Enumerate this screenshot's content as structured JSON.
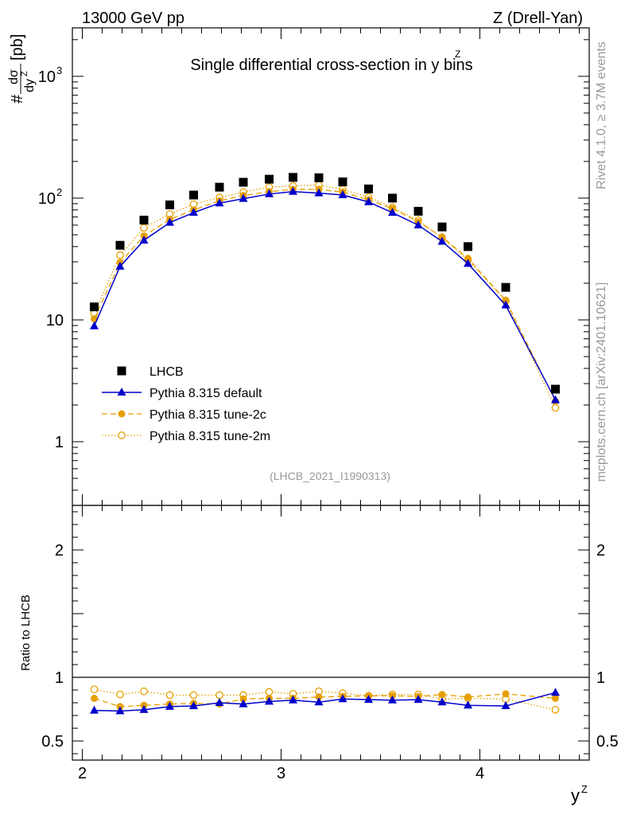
{
  "header": {
    "energy_label": "13000 GeV pp",
    "process_label": "Z (Drell-Yan)"
  },
  "side_labels": {
    "rivet_info": "Rivet 4.1.0, ≥ 3.7M events",
    "source_info": "mcplots.cern.ch [arXiv:2401.10621]"
  },
  "chart_data": {
    "type": "line",
    "title": "Single differential cross-section in y bins",
    "title_sup": "Z",
    "analysis_id": "(LHCB_2021_I1990313)",
    "xlabel": "y",
    "xlabel_sup": "Z",
    "xlim": [
      1.95,
      4.55
    ],
    "x_ticks": [
      {
        "value": 2,
        "label": "2"
      },
      {
        "value": 3,
        "label": "3"
      },
      {
        "value": 4,
        "label": "4"
      }
    ],
    "main": {
      "ylabel": "dσ/dy^Z [pb]",
      "ylabel_prefix": "#",
      "ylabel_num": "dσ",
      "ylabel_den": "dy",
      "ylabel_den_sup": "Z",
      "ylabel_unit": "[pb]",
      "yscale": "log",
      "ylim": [
        0.3,
        2500
      ],
      "y_ticks": [
        {
          "value": 1,
          "label": "1"
        },
        {
          "value": 10,
          "label": "10"
        },
        {
          "value": 100,
          "label": "10",
          "sup": "2"
        },
        {
          "value": 1000,
          "label": "10",
          "sup": "3"
        }
      ]
    },
    "ratio": {
      "ylabel": "Ratio to LHCB",
      "ylim": [
        0.35,
        2.35
      ],
      "y_ticks": [
        {
          "value": 0.5,
          "label": "0.5"
        },
        {
          "value": 1,
          "label": "1"
        },
        {
          "value": 2,
          "label": "2"
        }
      ],
      "reference": 1
    },
    "x": [
      2.06,
      2.19,
      2.31,
      2.44,
      2.56,
      2.69,
      2.81,
      2.94,
      3.06,
      3.19,
      3.31,
      3.44,
      3.56,
      3.69,
      3.81,
      3.94,
      4.13,
      4.38
    ],
    "series": [
      {
        "name": "LHCB",
        "style": "data",
        "color": "#000000",
        "values": [
          12.8,
          41,
          66,
          88,
          106,
          123,
          135,
          143,
          148,
          147,
          136,
          119,
          100,
          78,
          58,
          40,
          18.5,
          2.7
        ]
      },
      {
        "name": "Pythia 8.315 default",
        "style": "solid-triangle",
        "color": "#0000cc",
        "values": [
          8.9,
          27.5,
          45,
          63,
          76,
          91,
          99,
          108,
          113,
          110,
          106,
          93,
          76,
          60,
          44,
          29,
          13.2,
          2.2
        ],
        "ratio": [
          0.74,
          0.735,
          0.745,
          0.77,
          0.775,
          0.8,
          0.79,
          0.81,
          0.82,
          0.805,
          0.83,
          0.825,
          0.82,
          0.825,
          0.805,
          0.78,
          0.775,
          0.88
        ]
      },
      {
        "name": "Pythia 8.315 tune-2c",
        "style": "dashed-filled-circle",
        "color": "#e69f00",
        "values": [
          10.2,
          29.5,
          49,
          67,
          80,
          95,
          105,
          113,
          118,
          118,
          112,
          97,
          82,
          64,
          48,
          32,
          14.5,
          2.15
        ],
        "ratio": [
          0.835,
          0.77,
          0.78,
          0.79,
          0.795,
          0.79,
          0.83,
          0.835,
          0.835,
          0.845,
          0.85,
          0.855,
          0.855,
          0.85,
          0.865,
          0.845,
          0.87,
          0.835
        ]
      },
      {
        "name": "Pythia 8.315 tune-2m",
        "style": "dotted-open-circle",
        "color": "#e69f00",
        "values": [
          11.3,
          34,
          57,
          74,
          89,
          101,
          112,
          123,
          126,
          128,
          118,
          102,
          84,
          66,
          47,
          31,
          14.3,
          1.9
        ],
        "ratio": [
          0.905,
          0.865,
          0.89,
          0.86,
          0.86,
          0.86,
          0.86,
          0.885,
          0.87,
          0.89,
          0.875,
          0.855,
          0.865,
          0.865,
          0.83,
          0.835,
          0.83,
          0.745
        ]
      }
    ]
  }
}
